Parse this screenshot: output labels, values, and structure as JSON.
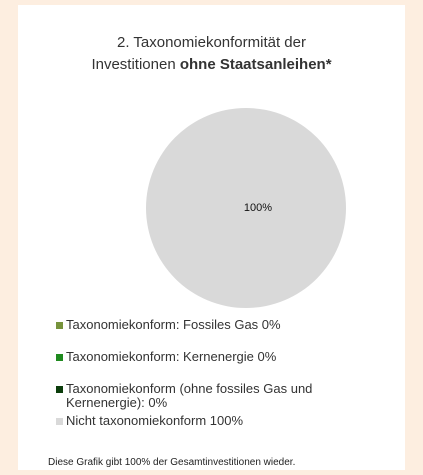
{
  "chart_data": {
    "type": "pie",
    "title_line1": "2. Taxonomiekonformität der",
    "title_line2": "Investitionen",
    "title_bold": "ohne Staatsanleihen*",
    "categories": [
      "Taxonomiekonform: Fossiles Gas 0%",
      "Taxonomiekonform: Kernenergie 0%",
      "Taxonomiekonform (ohne fossiles Gas und Kernenergie): 0%",
      "Nicht taxonomiekonform 100%"
    ],
    "values": [
      0,
      0,
      0,
      100
    ],
    "value_labels": [
      "0%",
      "0%",
      "0%",
      "100%"
    ],
    "colors": [
      "#77933c",
      "#1f8a1f",
      "#0b3d0b",
      "#d9d9d9"
    ],
    "footnote": "Diese Grafik gibt 100% der Gesamtinvestitionen wieder."
  }
}
